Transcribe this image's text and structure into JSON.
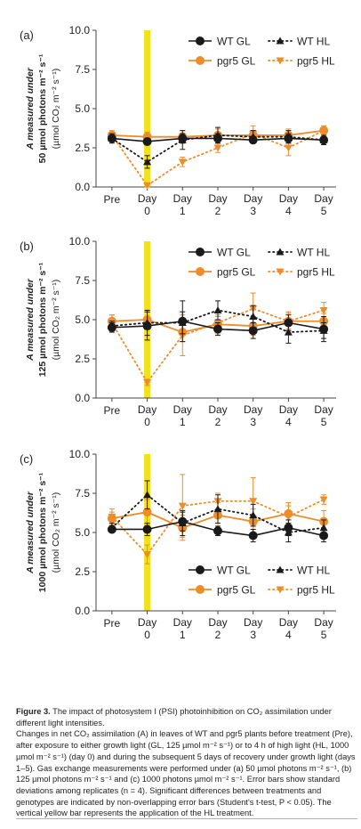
{
  "figure": {
    "categories": [
      "Pre",
      "Day 0",
      "Day 1",
      "Day 2",
      "Day 3",
      "Day 4",
      "Day 5"
    ],
    "colors": {
      "wt": "#1a1a1a",
      "pgr5": "#ee8c2a",
      "ht_bar": "#f2e21b"
    },
    "legend": {
      "wt_gl": "WT GL",
      "wt_hl": "WT HL",
      "pgr5_gl": "pgr5 GL",
      "pgr5_hl": "pgr5 HL"
    },
    "y_ticks": [
      "0.0",
      "2.5",
      "5.0",
      "7.5",
      "10.0"
    ]
  },
  "chart_data": [
    {
      "type": "line",
      "panel": "(a)",
      "ylabel_lines": [
        "A measured under",
        "50 µmol photons m⁻² s⁻¹",
        "(µmol CO₂ m⁻² s⁻¹)"
      ],
      "categories": [
        "Pre",
        "Day 0",
        "Day 1",
        "Day 2",
        "Day 3",
        "Day 4",
        "Day 5"
      ],
      "ylim": [
        0,
        10
      ],
      "legend_position": "top-right",
      "series": [
        {
          "name": "WT GL",
          "values": [
            3.1,
            2.9,
            3.1,
            3.1,
            3.0,
            3.1,
            3.0
          ],
          "errors": [
            0.2,
            0.2,
            0.3,
            0.3,
            0.2,
            0.3,
            0.3
          ]
        },
        {
          "name": "WT HL",
          "values": [
            3.1,
            1.6,
            3.0,
            3.3,
            3.2,
            3.2,
            3.0
          ],
          "errors": [
            0.3,
            0.4,
            0.6,
            0.5,
            0.4,
            0.4,
            0.3
          ]
        },
        {
          "name": "pgr5 GL",
          "values": [
            3.3,
            3.2,
            3.2,
            3.3,
            3.3,
            3.3,
            3.6
          ],
          "errors": [
            0.2,
            0.3,
            0.4,
            0.4,
            0.3,
            0.4,
            0.3
          ]
        },
        {
          "name": "pgr5 HL",
          "values": [
            3.3,
            0.1,
            1.6,
            2.5,
            3.4,
            2.5,
            3.6
          ],
          "errors": [
            0.3,
            0.1,
            0.3,
            0.3,
            0.5,
            0.5,
            0.3
          ]
        }
      ]
    },
    {
      "type": "line",
      "panel": "(b)",
      "ylabel_lines": [
        "A measured under",
        "125 µmol photons m⁻² s⁻¹",
        "(µmol CO₂ m⁻² s⁻¹)"
      ],
      "categories": [
        "Pre",
        "Day 0",
        "Day 1",
        "Day 2",
        "Day 3",
        "Day 4",
        "Day 5"
      ],
      "ylim": [
        0,
        10
      ],
      "legend_position": "top-right",
      "series": [
        {
          "name": "WT GL",
          "values": [
            4.5,
            4.6,
            4.9,
            4.4,
            4.3,
            4.8,
            4.4
          ],
          "errors": [
            0.3,
            0.9,
            1.3,
            0.4,
            0.5,
            0.5,
            0.8
          ]
        },
        {
          "name": "WT HL",
          "values": [
            4.6,
            4.8,
            4.8,
            5.6,
            5.2,
            4.2,
            4.3
          ],
          "errors": [
            0.3,
            0.8,
            0.7,
            0.6,
            0.7,
            0.7,
            0.5
          ]
        },
        {
          "name": "pgr5 GL",
          "values": [
            4.9,
            5.0,
            4.2,
            4.7,
            4.6,
            4.9,
            4.9
          ],
          "errors": [
            0.4,
            0.6,
            0.6,
            0.6,
            0.6,
            0.5,
            0.5
          ]
        },
        {
          "name": "pgr5 HL",
          "values": [
            4.8,
            1.0,
            4.0,
            4.8,
            5.7,
            4.9,
            5.6
          ],
          "errors": [
            0.5,
            0.2,
            1.3,
            0.4,
            1.0,
            0.6,
            0.5
          ]
        }
      ]
    },
    {
      "type": "line",
      "panel": "(c)",
      "ylabel_lines": [
        "A measured under",
        "1000 µmol photons m⁻² s⁻¹",
        "(µmol CO₂ m⁻² s⁻¹)"
      ],
      "categories": [
        "Pre",
        "Day 0",
        "Day 1",
        "Day 2",
        "Day 3",
        "Day 4",
        "Day 5"
      ],
      "ylim": [
        0,
        10
      ],
      "legend_position": "bottom-right",
      "series": [
        {
          "name": "WT GL",
          "values": [
            5.2,
            5.2,
            5.7,
            5.1,
            4.8,
            5.3,
            4.8
          ],
          "errors": [
            0.2,
            0.4,
            0.6,
            0.3,
            0.4,
            0.5,
            0.4
          ]
        },
        {
          "name": "WT HL",
          "values": [
            5.3,
            7.4,
            5.6,
            6.5,
            6.1,
            5.0,
            5.3
          ],
          "errors": [
            0.3,
            0.9,
            0.8,
            0.9,
            0.7,
            0.6,
            0.5
          ]
        },
        {
          "name": "pgr5 GL",
          "values": [
            5.9,
            6.3,
            5.3,
            6.1,
            5.7,
            6.2,
            5.7
          ],
          "errors": [
            0.4,
            0.8,
            0.8,
            0.8,
            0.8,
            0.7,
            0.7
          ]
        },
        {
          "name": "pgr5 HL",
          "values": [
            6.0,
            3.6,
            6.7,
            7.0,
            7.0,
            6.0,
            7.1
          ],
          "errors": [
            0.5,
            0.6,
            2.0,
            0.5,
            1.5,
            0.7,
            0.3
          ]
        }
      ]
    }
  ],
  "caption": {
    "title": "Figure 3.",
    "title_text": "The impact of photosystem I (PSI) photoinhibition on CO₂ assimilation under different light intensities.",
    "body": "Changes in net CO₂ assimilation (A) in leaves of WT and pgr5 plants before treatment (Pre), after exposure to either growth light (GL, 125 µmol m⁻² s⁻¹) or to 4 h of high light (HL, 1000 µmol m⁻² s⁻¹) (day 0) and during the subsequent 5 days of recovery under growth light (days 1–5). Gas exchange measurements were performed under (a) 50 µmol photons m⁻² s⁻¹, (b) 125 µmol photons m⁻² s⁻¹ and (c) 1000 photons µmol m⁻² s⁻¹. Error bars show standard deviations among replicates (n = 4). Significant differences between treatments and genotypes are indicated by non-overlapping error bars (Student's t-test, P < 0.05). The vertical yellow bar represents the application of the HL treatment."
  }
}
